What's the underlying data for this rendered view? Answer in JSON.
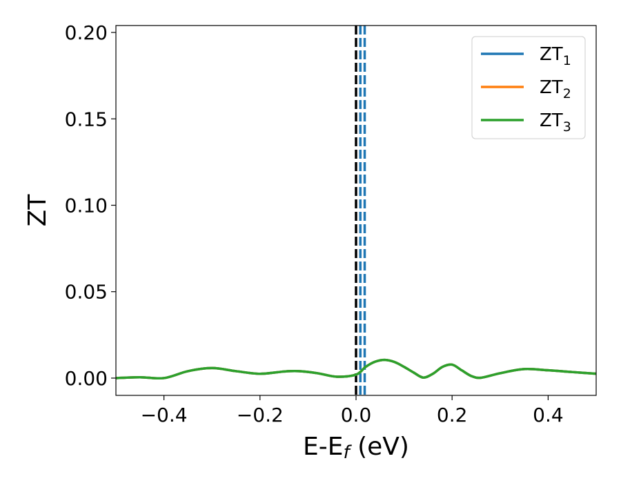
{
  "chart_data": {
    "type": "line",
    "xlabel": "E-E",
    "xlabel_sub": "f",
    "xlabel_unit": "(eV)",
    "ylabel": "ZT",
    "xlim": [
      -0.5,
      0.5
    ],
    "ylim": [
      -0.01,
      0.204
    ],
    "x_ticks": [
      -0.4,
      -0.2,
      0.0,
      0.2,
      0.4
    ],
    "x_tick_labels": [
      "−0.4",
      "−0.2",
      "0.0",
      "0.2",
      "0.4"
    ],
    "y_ticks": [
      0.0,
      0.05,
      0.1,
      0.15,
      0.2
    ],
    "y_tick_labels": [
      "0.00",
      "0.05",
      "0.10",
      "0.15",
      "0.20"
    ],
    "grid": false,
    "legend_position": "top-right",
    "series": [
      {
        "name": "ZT",
        "name_sub": "1",
        "color": "#1f77b4",
        "x": [
          -0.5,
          -0.45,
          -0.4,
          -0.35,
          -0.3,
          -0.25,
          -0.2,
          -0.15,
          -0.12,
          -0.08,
          -0.04,
          0.0,
          0.02,
          0.04,
          0.06,
          0.08,
          0.1,
          0.12,
          0.14,
          0.16,
          0.18,
          0.2,
          0.22,
          0.24,
          0.26,
          0.3,
          0.35,
          0.4,
          0.45,
          0.5
        ],
        "y": [
          0.0,
          0.0005,
          0.0,
          0.004,
          0.0058,
          0.004,
          0.0025,
          0.0038,
          0.004,
          0.0028,
          0.0008,
          0.002,
          0.0065,
          0.0095,
          0.0105,
          0.0093,
          0.0065,
          0.0032,
          0.0003,
          0.0025,
          0.0065,
          0.0078,
          0.0045,
          0.0012,
          0.0002,
          0.0028,
          0.0052,
          0.0045,
          0.0035,
          0.0025
        ]
      },
      {
        "name": "ZT",
        "name_sub": "2",
        "color": "#ff7f0e",
        "x": [
          -0.5,
          -0.45,
          -0.4,
          -0.35,
          -0.3,
          -0.25,
          -0.2,
          -0.15,
          -0.12,
          -0.08,
          -0.04,
          0.0,
          0.02,
          0.04,
          0.06,
          0.08,
          0.1,
          0.12,
          0.14,
          0.16,
          0.18,
          0.2,
          0.22,
          0.24,
          0.26,
          0.3,
          0.35,
          0.4,
          0.45,
          0.5
        ],
        "y": [
          0.0,
          0.0005,
          0.0,
          0.004,
          0.0058,
          0.004,
          0.0025,
          0.0038,
          0.004,
          0.0028,
          0.0008,
          0.002,
          0.0065,
          0.0095,
          0.0105,
          0.0093,
          0.0065,
          0.0032,
          0.0003,
          0.0025,
          0.0065,
          0.0078,
          0.0045,
          0.0012,
          0.0002,
          0.0028,
          0.0052,
          0.0045,
          0.0035,
          0.0025
        ]
      },
      {
        "name": "ZT",
        "name_sub": "3",
        "color": "#2ca02c",
        "x": [
          -0.5,
          -0.45,
          -0.4,
          -0.35,
          -0.3,
          -0.25,
          -0.2,
          -0.15,
          -0.12,
          -0.08,
          -0.04,
          0.0,
          0.02,
          0.04,
          0.06,
          0.08,
          0.1,
          0.12,
          0.14,
          0.16,
          0.18,
          0.2,
          0.22,
          0.24,
          0.26,
          0.3,
          0.35,
          0.4,
          0.45,
          0.5
        ],
        "y": [
          0.0,
          0.0005,
          0.0,
          0.004,
          0.0058,
          0.004,
          0.0025,
          0.0038,
          0.004,
          0.0028,
          0.0008,
          0.002,
          0.0065,
          0.0095,
          0.0105,
          0.0093,
          0.0065,
          0.0032,
          0.0003,
          0.0025,
          0.0065,
          0.0078,
          0.0045,
          0.0012,
          0.0002,
          0.0028,
          0.0052,
          0.0045,
          0.0035,
          0.0025
        ]
      }
    ],
    "vertical_lines": [
      {
        "x": 0.0,
        "color": "#000000",
        "style": "dashed"
      },
      {
        "x": 0.009,
        "color": "#1f77b4",
        "style": "dashed"
      },
      {
        "x": 0.018,
        "color": "#1f77b4",
        "style": "dashed"
      }
    ]
  }
}
